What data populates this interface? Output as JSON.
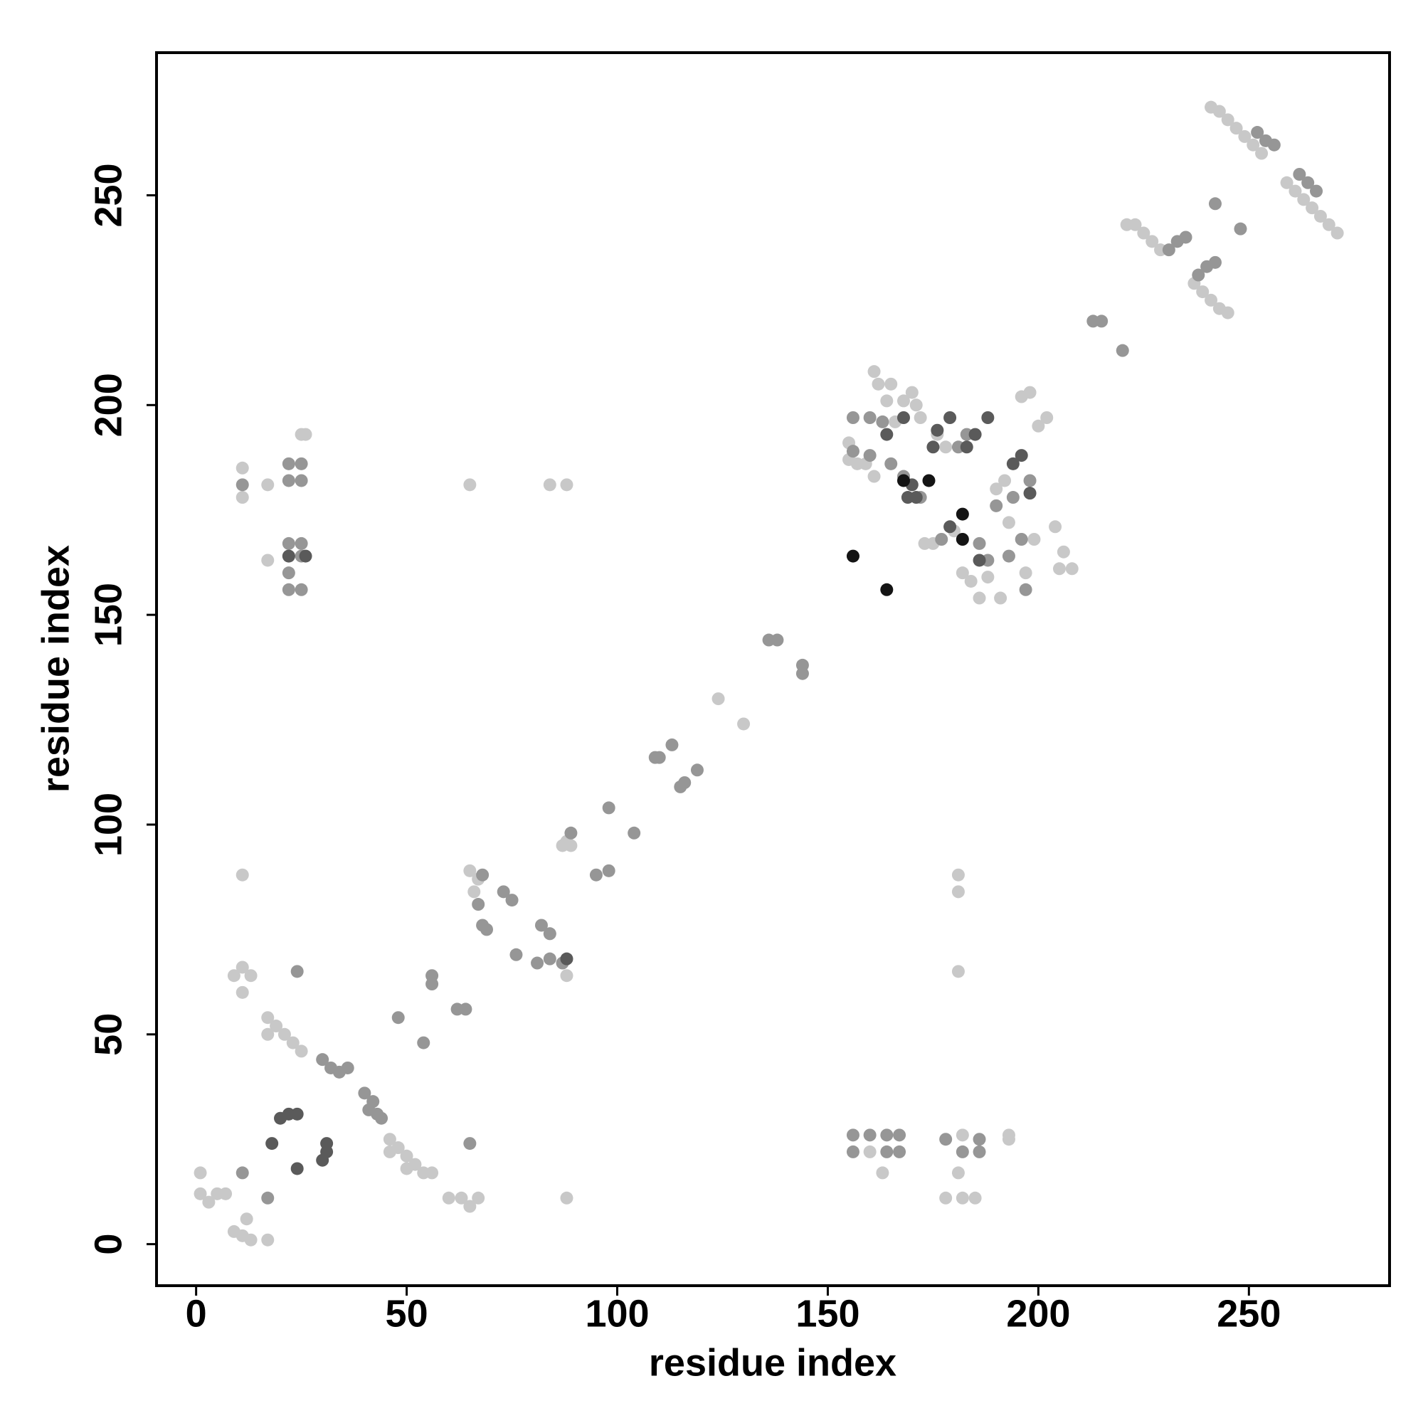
{
  "chart_data": {
    "type": "scatter",
    "x_label": "residue index",
    "y_label": "residue index",
    "xlim": [
      -9.4,
      283.4
    ],
    "ylim": [
      -9.9,
      284
    ],
    "xticks": [
      0,
      50,
      100,
      150,
      200,
      250
    ],
    "yticks": [
      0,
      50,
      100,
      150,
      200,
      250
    ],
    "grid": false,
    "series": [
      {
        "color": "#c8c8c8",
        "x": [
          241,
          243,
          245,
          247,
          249,
          251,
          253,
          259,
          261,
          263,
          265,
          267,
          269,
          271,
          221,
          223,
          225,
          227,
          229,
          237,
          239,
          241,
          243,
          245,
          155,
          155,
          157,
          159,
          161,
          161,
          162,
          164,
          165,
          166,
          168,
          170,
          171,
          172,
          176,
          178,
          173,
          175,
          180,
          182,
          184,
          186,
          188,
          191,
          196,
          198,
          200,
          202,
          204,
          206,
          205,
          208,
          199,
          197,
          193,
          190,
          192,
          124,
          130,
          87,
          89,
          88,
          65,
          67,
          66,
          84,
          88,
          60,
          63,
          65,
          67,
          1,
          1,
          3,
          5,
          7,
          9,
          11,
          12,
          13,
          17,
          11,
          11,
          13,
          9,
          17,
          19,
          21,
          23,
          25,
          17,
          46,
          48,
          50,
          52,
          54,
          56,
          46,
          50,
          11,
          88,
          11,
          11,
          17,
          17,
          26,
          25,
          65,
          84,
          88,
          160,
          163,
          178,
          182,
          185,
          181,
          181,
          181,
          181,
          193,
          193,
          182
        ],
        "values": [
          271,
          270,
          268,
          266,
          264,
          262,
          260,
          253,
          251,
          249,
          247,
          245,
          243,
          241,
          243,
          243,
          241,
          239,
          237,
          229,
          227,
          225,
          223,
          222,
          191,
          187,
          186,
          186,
          183,
          208,
          205,
          201,
          205,
          196,
          201,
          203,
          200,
          197,
          193,
          190,
          167,
          167,
          170,
          160,
          158,
          154,
          159,
          154,
          202,
          203,
          195,
          197,
          171,
          165,
          161,
          161,
          168,
          160,
          172,
          180,
          182,
          130,
          124,
          95,
          95,
          96,
          89,
          87,
          84,
          74,
          64,
          11,
          11,
          9,
          11,
          17,
          12,
          10,
          12,
          12,
          3,
          2,
          6,
          1,
          1,
          60,
          66,
          64,
          64,
          54,
          52,
          50,
          48,
          46,
          50,
          25,
          23,
          21,
          19,
          17,
          17,
          22,
          18,
          88,
          11,
          185,
          178,
          181,
          163,
          193,
          193,
          181,
          181,
          181,
          22,
          17,
          11,
          11,
          11,
          17,
          65,
          84,
          88,
          25,
          26,
          26
        ]
      },
      {
        "color": "#969696",
        "x": [
          252,
          254,
          256,
          262,
          264,
          266,
          231,
          233,
          235,
          238,
          240,
          242,
          242,
          248,
          213,
          215,
          220,
          156,
          160,
          156,
          160,
          163,
          165,
          168,
          172,
          177,
          181,
          183,
          186,
          188,
          190,
          193,
          194,
          196,
          197,
          198,
          136,
          138,
          144,
          144,
          109,
          113,
          116,
          119,
          110,
          115,
          98,
          104,
          89,
          98,
          95,
          68,
          67,
          68,
          69,
          73,
          75,
          76,
          81,
          82,
          84,
          84,
          87,
          62,
          64,
          56,
          56,
          54,
          48,
          65,
          24,
          30,
          32,
          34,
          36,
          40,
          42,
          41,
          43,
          44,
          11,
          17,
          11,
          22,
          22,
          22,
          22,
          22,
          22,
          25,
          25,
          25,
          25,
          25,
          156,
          156,
          160,
          164,
          164,
          167,
          167,
          178,
          182,
          186,
          186
        ],
        "values": [
          265,
          263,
          262,
          255,
          253,
          251,
          237,
          239,
          240,
          231,
          233,
          234,
          248,
          242,
          220,
          220,
          213,
          197,
          197,
          189,
          188,
          196,
          186,
          183,
          178,
          168,
          190,
          193,
          167,
          163,
          176,
          164,
          178,
          168,
          156,
          182,
          144,
          144,
          136,
          138,
          116,
          119,
          110,
          113,
          116,
          109,
          104,
          98,
          98,
          89,
          88,
          88,
          81,
          76,
          75,
          84,
          82,
          69,
          67,
          76,
          74,
          68,
          67,
          56,
          56,
          62,
          64,
          48,
          54,
          24,
          65,
          44,
          42,
          41,
          42,
          36,
          34,
          32,
          31,
          30,
          17,
          11,
          181,
          186,
          182,
          167,
          164,
          160,
          156,
          186,
          182,
          167,
          164,
          156,
          22,
          26,
          26,
          22,
          26,
          22,
          26,
          25,
          22,
          22,
          25
        ]
      },
      {
        "color": "#5a5a5a",
        "x": [
          164,
          168,
          176,
          179,
          185,
          188,
          194,
          196,
          198,
          183,
          186,
          169,
          171,
          179,
          175,
          170,
          88,
          18,
          24,
          20,
          22,
          24,
          30,
          31,
          31,
          22,
          26
        ],
        "values": [
          193,
          197,
          194,
          197,
          193,
          197,
          186,
          188,
          179,
          190,
          163,
          178,
          178,
          171,
          190,
          181,
          68,
          24,
          18,
          30,
          31,
          31,
          20,
          22,
          24,
          164,
          164
        ]
      },
      {
        "color": "#141414",
        "x": [
          156,
          164,
          174,
          182,
          168,
          182
        ],
        "values": [
          164,
          156,
          182,
          174,
          182,
          168
        ]
      }
    ]
  }
}
